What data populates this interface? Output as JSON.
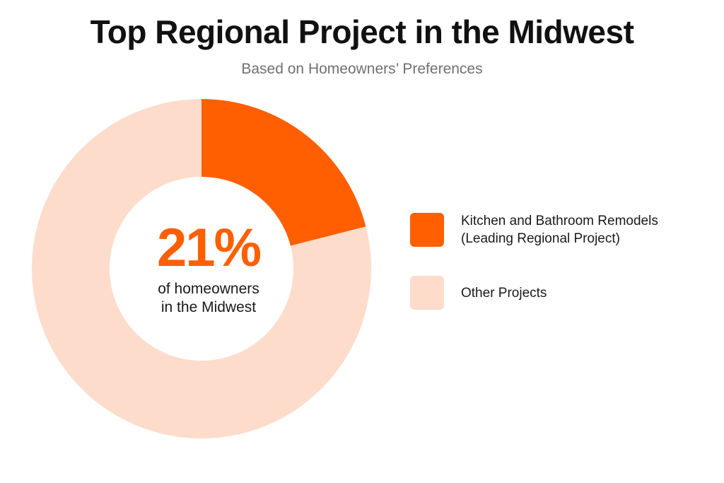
{
  "header": {
    "title": "Top Regional Project in the Midwest",
    "subtitle": "Based on Homeowners’ Preferences"
  },
  "center": {
    "value": "21%",
    "caption_line1": "of homeowners",
    "caption_line2": "in the Midwest"
  },
  "legend": {
    "items": [
      {
        "line1": "Kitchen and Bathroom Remodels",
        "line2": "(Leading Regional Project)"
      },
      {
        "line1": "Other Projects",
        "line2": ""
      }
    ]
  },
  "colors": {
    "accent": "#ff5f00",
    "other": "#fddccc"
  },
  "chart_data": {
    "type": "pie",
    "donut": true,
    "title": "Top Regional Project in the Midwest",
    "subtitle": "Based on Homeowners’ Preferences",
    "categories": [
      "Kitchen and Bathroom Remodels (Leading Regional Project)",
      "Other Projects"
    ],
    "values": [
      21,
      79
    ],
    "colors": [
      "#ff5f00",
      "#fddccc"
    ],
    "center_label": "21%",
    "legend_position": "right"
  }
}
